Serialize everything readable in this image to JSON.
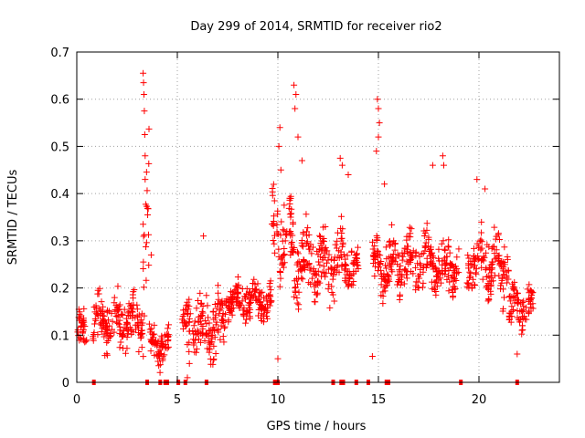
{
  "chart_data": {
    "type": "scatter",
    "title": "Day 299 of 2014, SRMTID for receiver rio2",
    "xlabel": "GPS time / hours",
    "ylabel": "SRMTID / TECUs",
    "xlim": [
      0,
      24
    ],
    "ylim": [
      0,
      0.7
    ],
    "x_ticks": [
      0,
      5,
      10,
      15,
      20
    ],
    "x_tick_labels": [
      "0",
      "5",
      "10",
      "15",
      "20"
    ],
    "y_ticks": [
      0,
      0.1,
      0.2,
      0.3,
      0.4,
      0.5,
      0.6,
      0.7
    ],
    "y_tick_labels": [
      "0",
      "0.1",
      "0.2",
      "0.3",
      "0.4",
      "0.5",
      "0.6",
      "0.7"
    ],
    "grid": true,
    "legend": "none",
    "marker": "plus",
    "color": "#ff0000",
    "segments": [
      {
        "x_start": 0.0,
        "x_end": 0.5,
        "y_center": 0.1,
        "y_spread": 0.06
      },
      {
        "x_start": 0.8,
        "x_end": 3.3,
        "y_center": 0.13,
        "y_spread": 0.07
      },
      {
        "x_start": 3.3,
        "x_end": 3.6,
        "y_center": 0.3,
        "y_spread": 0.25
      },
      {
        "x_start": 3.6,
        "x_end": 4.6,
        "y_center": 0.08,
        "y_spread": 0.05
      },
      {
        "x_start": 5.2,
        "x_end": 7.4,
        "y_center": 0.12,
        "y_spread": 0.08
      },
      {
        "x_start": 7.4,
        "x_end": 9.7,
        "y_center": 0.17,
        "y_spread": 0.05
      },
      {
        "x_start": 9.7,
        "x_end": 10.8,
        "y_center": 0.3,
        "y_spread": 0.12
      },
      {
        "x_start": 10.8,
        "x_end": 13.3,
        "y_center": 0.25,
        "y_spread": 0.1
      },
      {
        "x_start": 13.3,
        "x_end": 14.0,
        "y_center": 0.24,
        "y_spread": 0.06
      },
      {
        "x_start": 14.7,
        "x_end": 19.0,
        "y_center": 0.25,
        "y_spread": 0.08
      },
      {
        "x_start": 19.4,
        "x_end": 21.5,
        "y_center": 0.25,
        "y_spread": 0.09
      },
      {
        "x_start": 21.5,
        "x_end": 22.7,
        "y_center": 0.16,
        "y_spread": 0.06
      }
    ],
    "spikes": [
      {
        "x": 3.3,
        "y": 0.655
      },
      {
        "x": 3.32,
        "y": 0.635
      },
      {
        "x": 3.34,
        "y": 0.61
      },
      {
        "x": 3.36,
        "y": 0.575
      },
      {
        "x": 3.38,
        "y": 0.525
      },
      {
        "x": 3.4,
        "y": 0.48
      },
      {
        "x": 3.4,
        "y": 0.43
      },
      {
        "x": 3.3,
        "y": 0.335
      },
      {
        "x": 3.7,
        "y": 0.27
      },
      {
        "x": 6.3,
        "y": 0.31
      },
      {
        "x": 10.1,
        "y": 0.54
      },
      {
        "x": 10.05,
        "y": 0.5
      },
      {
        "x": 10.15,
        "y": 0.45
      },
      {
        "x": 10.8,
        "y": 0.63
      },
      {
        "x": 10.9,
        "y": 0.61
      },
      {
        "x": 10.85,
        "y": 0.58
      },
      {
        "x": 11.0,
        "y": 0.52
      },
      {
        "x": 11.2,
        "y": 0.47
      },
      {
        "x": 13.1,
        "y": 0.475
      },
      {
        "x": 13.2,
        "y": 0.46
      },
      {
        "x": 13.5,
        "y": 0.44
      },
      {
        "x": 14.95,
        "y": 0.6
      },
      {
        "x": 15.0,
        "y": 0.58
      },
      {
        "x": 15.05,
        "y": 0.55
      },
      {
        "x": 15.0,
        "y": 0.52
      },
      {
        "x": 14.9,
        "y": 0.49
      },
      {
        "x": 17.7,
        "y": 0.46
      },
      {
        "x": 18.2,
        "y": 0.48
      },
      {
        "x": 18.25,
        "y": 0.46
      },
      {
        "x": 19.9,
        "y": 0.43
      },
      {
        "x": 20.3,
        "y": 0.41
      },
      {
        "x": 15.3,
        "y": 0.42
      },
      {
        "x": 10.0,
        "y": 0.05
      },
      {
        "x": 14.7,
        "y": 0.055
      },
      {
        "x": 5.5,
        "y": 0.01
      },
      {
        "x": 5.6,
        "y": 0.04
      },
      {
        "x": 21.9,
        "y": 0.06
      }
    ],
    "zero_markers": [
      0.85,
      3.5,
      4.15,
      4.4,
      4.5,
      5.05,
      5.4,
      6.45,
      9.85,
      10.0,
      12.75,
      13.15,
      13.25,
      13.9,
      14.5,
      15.4,
      15.5,
      19.1,
      21.9
    ]
  }
}
